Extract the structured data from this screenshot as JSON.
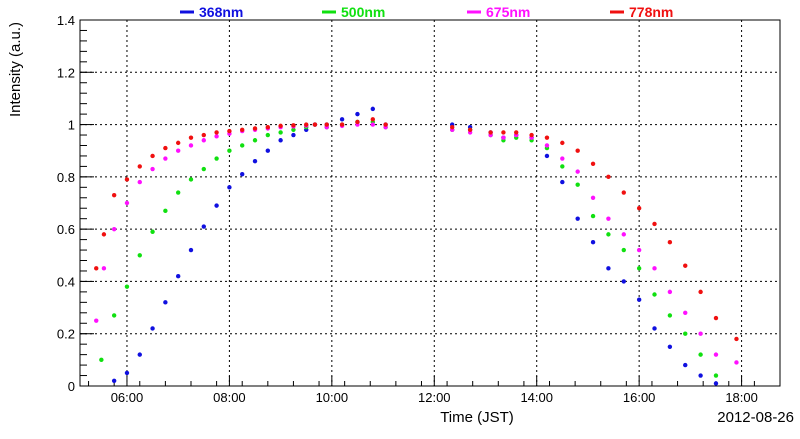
{
  "chart_data": {
    "type": "scatter",
    "title": "",
    "xlabel": "Time (JST)",
    "ylabel": "Intensity (a.u.)",
    "date_label": "2012-08-26",
    "xlim": [
      5.083,
      18.75
    ],
    "ylim": [
      0,
      1.4
    ],
    "grid": true,
    "legend_position": "top",
    "x_ticks": [
      {
        "value": 6,
        "label": "06:00"
      },
      {
        "value": 8,
        "label": "08:00"
      },
      {
        "value": 10,
        "label": "10:00"
      },
      {
        "value": 12,
        "label": "12:00"
      },
      {
        "value": 14,
        "label": "14:00"
      },
      {
        "value": 16,
        "label": "16:00"
      },
      {
        "value": 18,
        "label": "18:00"
      }
    ],
    "y_ticks": [
      {
        "value": 0,
        "label": "0"
      },
      {
        "value": 0.2,
        "label": "0.2"
      },
      {
        "value": 0.4,
        "label": "0.4"
      },
      {
        "value": 0.6,
        "label": "0.6"
      },
      {
        "value": 0.8,
        "label": "0.8"
      },
      {
        "value": 1.0,
        "label": "1"
      },
      {
        "value": 1.2,
        "label": "1.2"
      },
      {
        "value": 1.4,
        "label": "1.4"
      }
    ],
    "series": [
      {
        "name": "368nm",
        "color": "#1010e0",
        "x": [
          5.75,
          6.0,
          6.25,
          6.5,
          6.75,
          7.0,
          7.25,
          7.5,
          7.75,
          8.0,
          8.25,
          8.5,
          8.75,
          9.0,
          9.25,
          9.5,
          9.67,
          9.9,
          10.2,
          10.5,
          10.8,
          11.05,
          12.35,
          12.7,
          13.1,
          13.35,
          13.6,
          13.9,
          14.2,
          14.5,
          14.8,
          15.1,
          15.4,
          15.7,
          16.0,
          16.3,
          16.6,
          16.9,
          17.2,
          17.5
        ],
        "y": [
          0.02,
          0.05,
          0.12,
          0.22,
          0.32,
          0.42,
          0.52,
          0.61,
          0.69,
          0.76,
          0.81,
          0.86,
          0.9,
          0.94,
          0.96,
          0.98,
          1.0,
          1.0,
          1.02,
          1.04,
          1.06,
          1.0,
          1.0,
          0.99,
          0.97,
          0.95,
          0.96,
          0.95,
          0.88,
          0.78,
          0.64,
          0.55,
          0.45,
          0.4,
          0.33,
          0.22,
          0.15,
          0.08,
          0.04,
          0.01
        ]
      },
      {
        "name": "500nm",
        "color": "#10e010",
        "x": [
          5.5,
          5.75,
          6.0,
          6.25,
          6.5,
          6.75,
          7.0,
          7.25,
          7.5,
          7.75,
          8.0,
          8.25,
          8.5,
          8.75,
          9.0,
          9.25,
          9.5,
          9.67,
          9.9,
          10.2,
          10.5,
          10.8,
          11.05,
          12.35,
          12.7,
          13.1,
          13.35,
          13.6,
          13.9,
          14.2,
          14.5,
          14.8,
          15.1,
          15.4,
          15.7,
          16.0,
          16.3,
          16.6,
          16.9,
          17.2,
          17.5
        ],
        "y": [
          0.1,
          0.27,
          0.38,
          0.5,
          0.59,
          0.67,
          0.74,
          0.79,
          0.83,
          0.87,
          0.9,
          0.92,
          0.94,
          0.96,
          0.97,
          0.98,
          0.99,
          1.0,
          0.99,
          1.0,
          1.01,
          1.01,
          0.99,
          0.98,
          0.98,
          0.96,
          0.94,
          0.95,
          0.94,
          0.91,
          0.84,
          0.77,
          0.65,
          0.58,
          0.52,
          0.45,
          0.35,
          0.27,
          0.2,
          0.12,
          0.04
        ]
      },
      {
        "name": "675nm",
        "color": "#ff10ff",
        "x": [
          5.4,
          5.55,
          5.75,
          6.0,
          6.25,
          6.5,
          6.75,
          7.0,
          7.25,
          7.5,
          7.75,
          8.0,
          8.25,
          8.5,
          8.75,
          9.0,
          9.25,
          9.5,
          9.67,
          9.9,
          10.2,
          10.5,
          10.8,
          11.05,
          12.35,
          12.7,
          13.1,
          13.35,
          13.6,
          13.9,
          14.2,
          14.5,
          14.8,
          15.1,
          15.4,
          15.7,
          16.0,
          16.3,
          16.6,
          16.9,
          17.2,
          17.5,
          17.9
        ],
        "y": [
          0.25,
          0.45,
          0.6,
          0.7,
          0.78,
          0.83,
          0.87,
          0.9,
          0.92,
          0.94,
          0.955,
          0.965,
          0.975,
          0.98,
          0.985,
          0.99,
          0.993,
          0.996,
          1.0,
          0.99,
          0.995,
          1.0,
          1.0,
          0.99,
          0.98,
          0.97,
          0.96,
          0.95,
          0.96,
          0.95,
          0.92,
          0.87,
          0.82,
          0.72,
          0.64,
          0.58,
          0.52,
          0.45,
          0.36,
          0.28,
          0.2,
          0.12,
          0.09
        ]
      },
      {
        "name": "778nm",
        "color": "#f01010",
        "x": [
          5.4,
          5.55,
          5.75,
          6.0,
          6.25,
          6.5,
          6.75,
          7.0,
          7.25,
          7.5,
          7.75,
          8.0,
          8.25,
          8.5,
          8.75,
          9.0,
          9.25,
          9.5,
          9.67,
          9.9,
          10.2,
          10.5,
          10.8,
          11.05,
          12.35,
          12.7,
          13.1,
          13.35,
          13.6,
          13.9,
          14.2,
          14.5,
          14.8,
          15.1,
          15.4,
          15.7,
          16.0,
          16.3,
          16.6,
          16.9,
          17.2,
          17.5,
          17.9
        ],
        "y": [
          0.45,
          0.58,
          0.73,
          0.79,
          0.84,
          0.88,
          0.91,
          0.93,
          0.95,
          0.96,
          0.97,
          0.975,
          0.98,
          0.985,
          0.99,
          0.995,
          0.997,
          1.0,
          1.0,
          1.0,
          1.0,
          1.01,
          1.02,
          1.0,
          0.99,
          0.98,
          0.97,
          0.97,
          0.97,
          0.96,
          0.95,
          0.93,
          0.9,
          0.85,
          0.8,
          0.74,
          0.68,
          0.62,
          0.55,
          0.46,
          0.36,
          0.26,
          0.18
        ]
      }
    ]
  }
}
